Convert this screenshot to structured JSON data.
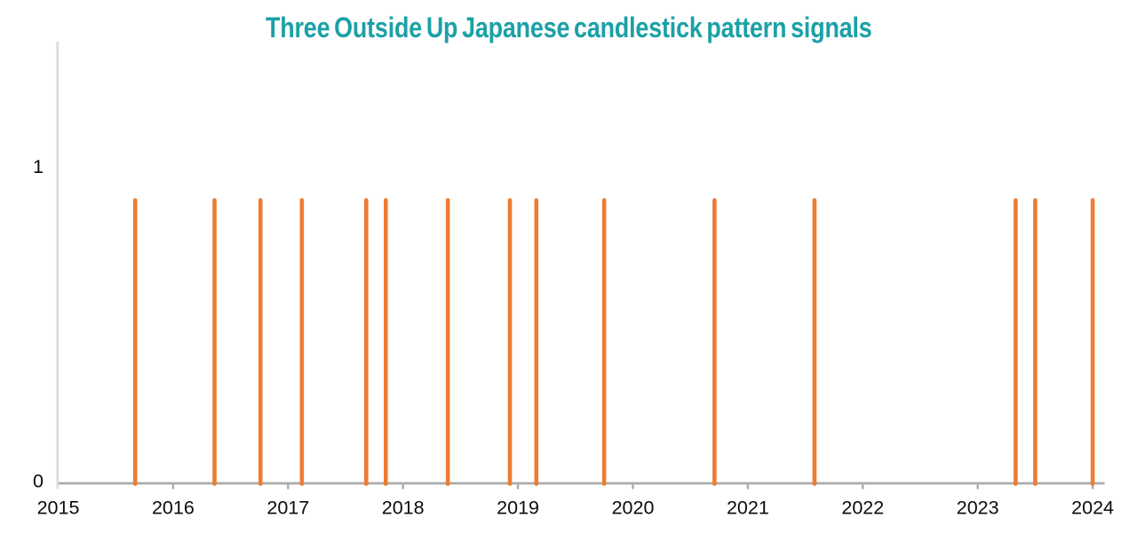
{
  "chart_data": {
    "type": "line",
    "title": "Three Outside Up Japanese candlestick pattern signals",
    "subtitle": "",
    "xlabel": "",
    "ylabel": "",
    "x_tick_labels": [
      "2015",
      "2016",
      "2017",
      "2018",
      "2019",
      "2020",
      "2021",
      "2022",
      "2023",
      "2024"
    ],
    "x_tick_years": [
      2015,
      2016,
      2017,
      2018,
      2019,
      2020,
      2021,
      2022,
      2023,
      2024
    ],
    "y_ticks": [
      {
        "label": "1",
        "value": 1
      },
      {
        "label": "0",
        "value": 0
      }
    ],
    "xlim": [
      2015,
      2024.1
    ],
    "ylim": [
      0,
      1.4
    ],
    "grid": false,
    "legend": false,
    "peak_display_value": 0.9,
    "series": [
      {
        "name": "Three Outside Up signal",
        "x_years": [
          2015.67,
          2016.36,
          2016.76,
          2017.12,
          2017.68,
          2017.85,
          2018.39,
          2018.93,
          2019.16,
          2019.75,
          2020.71,
          2021.58,
          2023.33,
          2023.5,
          2024.0
        ],
        "values": [
          1,
          1,
          1,
          1,
          1,
          1,
          1,
          1,
          1,
          1,
          1,
          1,
          1,
          1,
          1
        ],
        "dates_approx": [
          "2015-09",
          "2016-05",
          "2016-10",
          "2017-02",
          "2017-09",
          "2017-11",
          "2018-05",
          "2018-12",
          "2019-02",
          "2019-10",
          "2020-09",
          "2021-08",
          "2023-05",
          "2023-07",
          "2024-01"
        ]
      }
    ],
    "colors": {
      "title": "#1BA1A6",
      "spike": "#ED7D31",
      "x_axis": "#ABABAB",
      "y_axis_line": "#DDDDDD",
      "tick_label": "#0B0B0B",
      "background": "#FFFFFF"
    }
  }
}
